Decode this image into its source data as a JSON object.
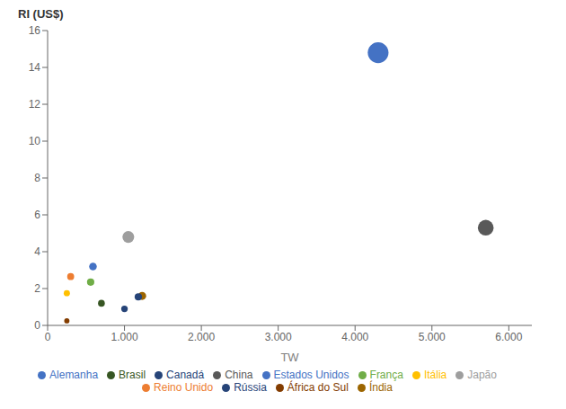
{
  "chart_data": {
    "type": "scatter",
    "xlabel": "TW",
    "ylabel": "RI (US$)",
    "xlim": [
      0,
      6300
    ],
    "ylim": [
      0,
      16
    ],
    "xticks": [
      0,
      {
        "value": 1000,
        "label": "1.000"
      },
      {
        "value": 2000,
        "label": "2.000"
      },
      {
        "value": 3000,
        "label": "3.000"
      },
      {
        "value": 4000,
        "label": "4.000"
      },
      {
        "value": 5000,
        "label": "5.000"
      },
      {
        "value": 6000,
        "label": "6.000"
      }
    ],
    "yticks": [
      0,
      2,
      4,
      6,
      8,
      10,
      12,
      14,
      16
    ],
    "grid": false,
    "legend": "bottom",
    "series": [
      {
        "name": "Estados Unidos",
        "color": "#4472C4",
        "x": [
          4300
        ],
        "values": [
          14.8
        ],
        "size": [
          280
        ]
      },
      {
        "name": "Reino Unido",
        "color": "#ED7D31",
        "x": [
          300
        ],
        "values": [
          2.65
        ],
        "size": [
          32
        ]
      },
      {
        "name": "Japão",
        "color": "#9E9E9E",
        "x": [
          1050
        ],
        "values": [
          4.8
        ],
        "size": [
          90
        ]
      },
      {
        "name": "Itália",
        "color": "#FFC000",
        "x": [
          250
        ],
        "values": [
          1.75
        ],
        "size": [
          25
        ]
      },
      {
        "name": "Alemanha",
        "color": "#4472C4",
        "x": [
          590
        ],
        "values": [
          3.2
        ],
        "size": [
          38
        ]
      },
      {
        "name": "França",
        "color": "#70AD47",
        "x": [
          560
        ],
        "values": [
          2.35
        ],
        "size": [
          35
        ]
      },
      {
        "name": "Canadá",
        "color": "#264478",
        "x": [
          1000
        ],
        "values": [
          0.9
        ],
        "size": [
          28
        ]
      },
      {
        "name": "África do Sul",
        "color": "#833C00",
        "x": [
          250
        ],
        "values": [
          0.25
        ],
        "size": [
          18
        ]
      },
      {
        "name": "China",
        "color": "#595959",
        "x": [
          5700
        ],
        "values": [
          5.3
        ],
        "size": [
          160
        ]
      },
      {
        "name": "Índia",
        "color": "#9C6500",
        "x": [
          1230
        ],
        "values": [
          1.6
        ],
        "size": [
          42
        ]
      },
      {
        "name": "Rússia",
        "color": "#264478",
        "x": [
          1180
        ],
        "values": [
          1.55
        ],
        "size": [
          35
        ]
      },
      {
        "name": "Brasil",
        "color": "#375623",
        "x": [
          700
        ],
        "values": [
          1.2
        ],
        "size": [
          30
        ]
      }
    ]
  }
}
